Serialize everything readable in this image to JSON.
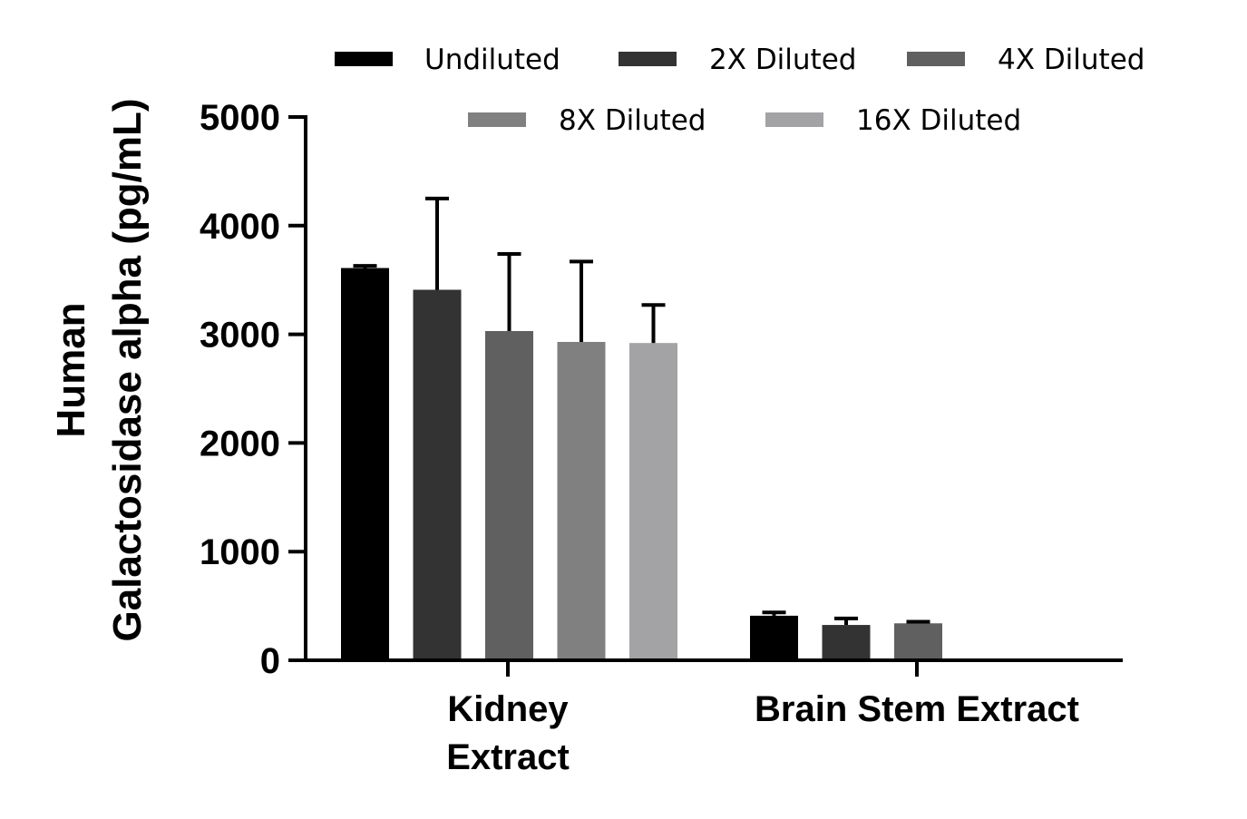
{
  "chart_data": {
    "type": "bar",
    "ylabel_lines": [
      "Human",
      "Galactosidase alpha (pg/mL)"
    ],
    "xlabel": "",
    "ylim": [
      0,
      5000
    ],
    "yticks": [
      "0",
      "1000",
      "2000",
      "3000",
      "4000",
      "5000"
    ],
    "categories": [
      {
        "lines": [
          "Kidney",
          "Extract"
        ]
      },
      {
        "lines": [
          "Brain Stem Extract"
        ]
      }
    ],
    "legend_position": "top",
    "series": [
      {
        "name": "Undiluted",
        "color": "#000000",
        "values": [
          3610,
          410
        ],
        "errors": [
          20,
          30
        ]
      },
      {
        "name": "2X Diluted",
        "color": "#333333",
        "values": [
          3410,
          325
        ],
        "errors": [
          840,
          60
        ]
      },
      {
        "name": "4X Diluted",
        "color": "#606060",
        "values": [
          3030,
          340
        ],
        "errors": [
          710,
          15
        ]
      },
      {
        "name": "8X Diluted",
        "color": "#808080",
        "values": [
          2930,
          null
        ],
        "errors": [
          740,
          null
        ]
      },
      {
        "name": "16X Diluted",
        "color": "#a3a3a6",
        "values": [
          2920,
          null
        ],
        "errors": [
          350,
          null
        ]
      }
    ]
  }
}
